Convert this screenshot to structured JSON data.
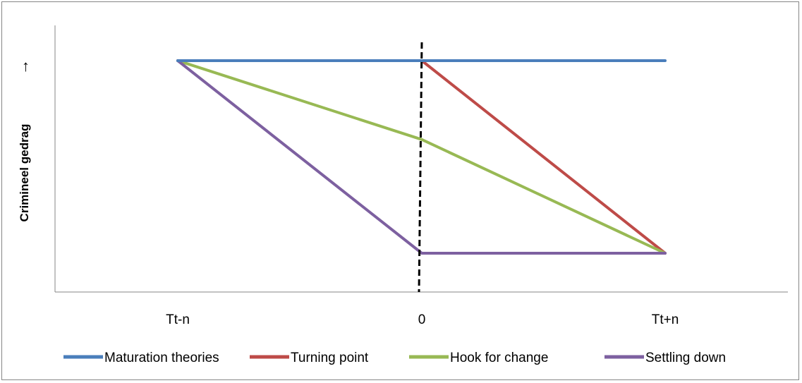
{
  "chart_data": {
    "type": "line",
    "title": "",
    "xlabel": "",
    "ylabel": "Crimineel gedrag",
    "ylabel_arrow": "→",
    "categories": [
      "Tt-n",
      "0",
      "Tt+n"
    ],
    "ylim": [
      0,
      10
    ],
    "grid": false,
    "legend_position": "bottom",
    "series": [
      {
        "name": "Maturation theories",
        "color": "#4a7ebb",
        "values": [
          10,
          10,
          10
        ]
      },
      {
        "name": "Turning point",
        "color": "#be4b48",
        "values": [
          10,
          10,
          1.7
        ]
      },
      {
        "name": "Hook for change",
        "color": "#98b954",
        "values": [
          10,
          6.6,
          1.7
        ]
      },
      {
        "name": "Settling down",
        "color": "#7d60a0",
        "values": [
          10,
          1.7,
          1.7
        ]
      }
    ],
    "reference_line": {
      "category": "0",
      "style": "dashed",
      "color": "#000000"
    }
  }
}
